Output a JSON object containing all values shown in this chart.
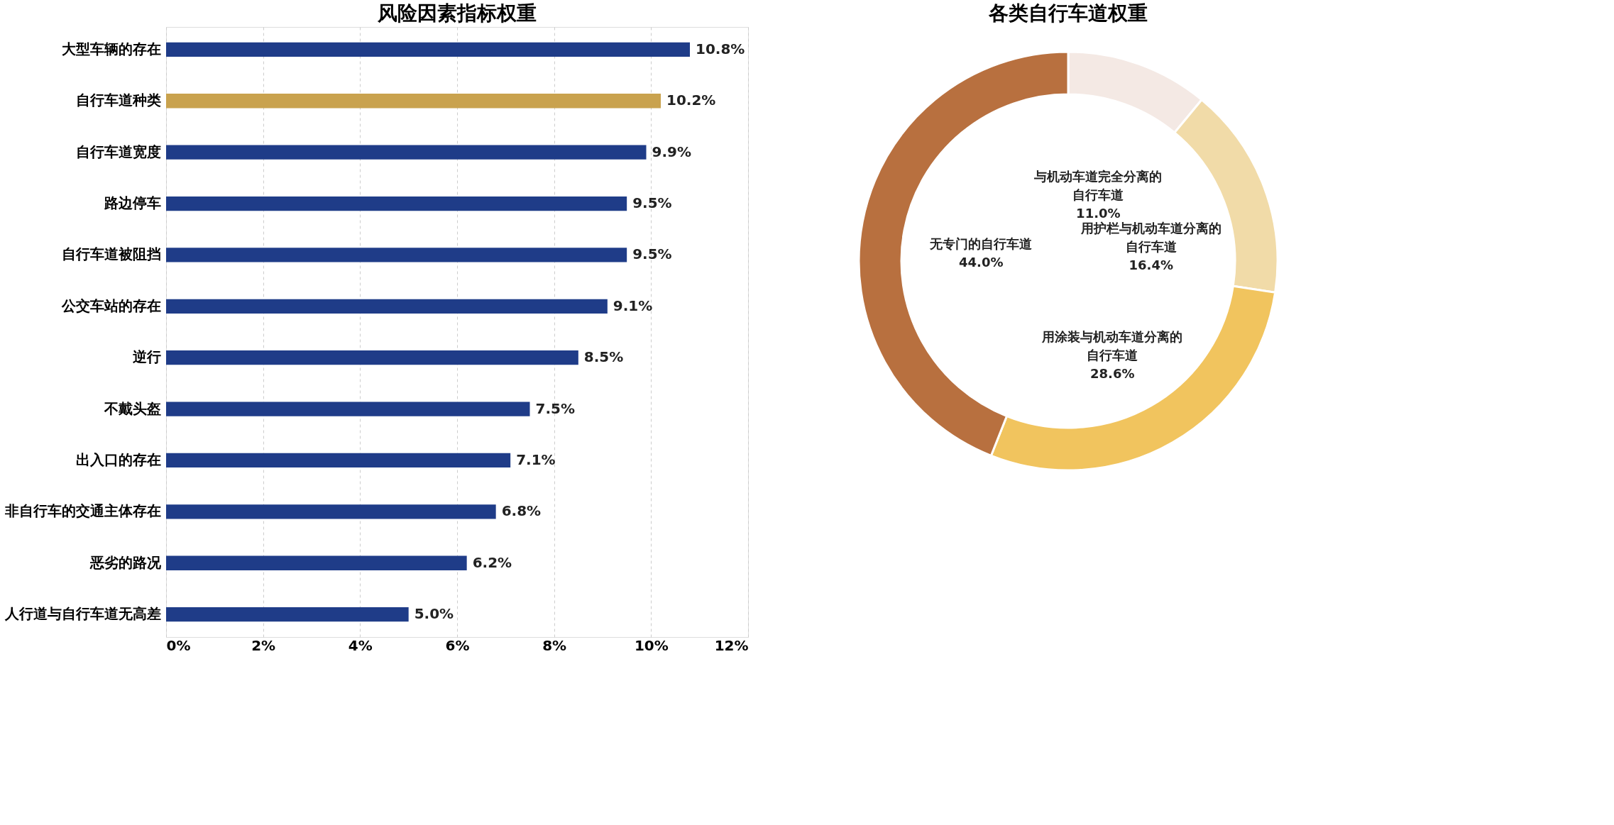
{
  "chart_data": [
    {
      "type": "bar",
      "orientation": "horizontal",
      "title": "风险因素指标权重",
      "categories": [
        "大型车辆的存在",
        "自行车道种类",
        "自行车道宽度",
        "路边停车",
        "自行车道被阻挡",
        "公交车站的存在",
        "逆行",
        "不戴头盔",
        "出入口的存在",
        "非自行车的交通主体存在",
        "恶劣的路况",
        "人行道与自行车道无高差"
      ],
      "values": [
        10.8,
        10.2,
        9.9,
        9.5,
        9.5,
        9.1,
        8.5,
        7.5,
        7.1,
        6.8,
        6.2,
        5.0
      ],
      "value_labels": [
        "10.8%",
        "10.2%",
        "9.9%",
        "9.5%",
        "9.5%",
        "9.1%",
        "8.5%",
        "7.5%",
        "7.1%",
        "6.8%",
        "6.2%",
        "5.0%"
      ],
      "colors": [
        "#1f3c88",
        "#c9a24e",
        "#1f3c88",
        "#1f3c88",
        "#1f3c88",
        "#1f3c88",
        "#1f3c88",
        "#1f3c88",
        "#1f3c88",
        "#1f3c88",
        "#1f3c88",
        "#1f3c88"
      ],
      "xlim": [
        0,
        12
      ],
      "xticks": [
        {
          "value": 0,
          "label": "0%"
        },
        {
          "value": 2,
          "label": "2%"
        },
        {
          "value": 4,
          "label": "4%"
        },
        {
          "value": 6,
          "label": "6%"
        },
        {
          "value": 8,
          "label": "8%"
        },
        {
          "value": 10,
          "label": "10%"
        },
        {
          "value": 12,
          "label": "12%"
        }
      ],
      "grid": "x",
      "legend": false
    },
    {
      "type": "donut",
      "title": "各类自行车道权重",
      "categories": [
        "与机动车道完全分离的自行车道",
        "用护栏与机动车道分离的自行车道",
        "用涂装与机动车道分离的自行车道",
        "无专门的自行车道"
      ],
      "values": [
        11.0,
        16.4,
        28.6,
        44.0
      ],
      "value_labels": [
        "11.0%",
        "16.4%",
        "28.6%",
        "44.0%"
      ],
      "colors": [
        "#f4e9e4",
        "#f1dba8",
        "#f1c45e",
        "#b8703f"
      ],
      "legend": false
    }
  ]
}
